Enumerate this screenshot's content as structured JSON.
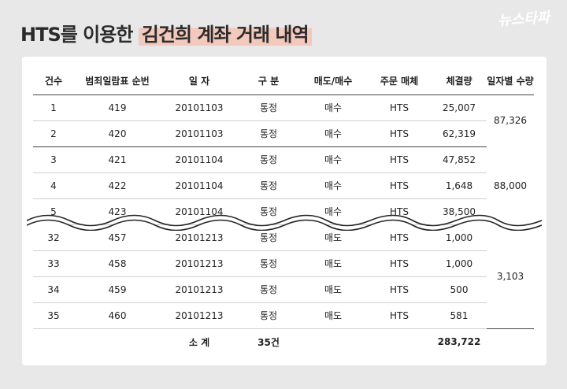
{
  "title": {
    "prefix": "HTS를 이용한 ",
    "highlight": "김건희 계좌 거래 내역"
  },
  "logo": {
    "text": "뉴스타파"
  },
  "table": {
    "headers": [
      "건수",
      "범죄일람표 순번",
      "일 자",
      "구 분",
      "매도/매수",
      "주문 매체",
      "체결량",
      "일자별 수량"
    ],
    "rows": [
      {
        "no": "1",
        "seq": "419",
        "date": "20101103",
        "type": "통정",
        "side": "매수",
        "media": "HTS",
        "qty": "25,007"
      },
      {
        "no": "2",
        "seq": "420",
        "date": "20101103",
        "type": "통정",
        "side": "매수",
        "media": "HTS",
        "qty": "62,319"
      },
      {
        "no": "3",
        "seq": "421",
        "date": "20101104",
        "type": "통정",
        "side": "매수",
        "media": "HTS",
        "qty": "47,852"
      },
      {
        "no": "4",
        "seq": "422",
        "date": "20101104",
        "type": "통정",
        "side": "매수",
        "media": "HTS",
        "qty": "1,648"
      },
      {
        "no": "5",
        "seq": "423",
        "date": "20101104",
        "type": "통정",
        "side": "매수",
        "media": "HTS",
        "qty": "38,500"
      },
      {
        "no": "32",
        "seq": "457",
        "date": "20101213",
        "type": "통정",
        "side": "매도",
        "media": "HTS",
        "qty": "1,000"
      },
      {
        "no": "33",
        "seq": "458",
        "date": "20101213",
        "type": "통정",
        "side": "매도",
        "media": "HTS",
        "qty": "1,000"
      },
      {
        "no": "34",
        "seq": "459",
        "date": "20101213",
        "type": "통정",
        "side": "매도",
        "media": "HTS",
        "qty": "500"
      },
      {
        "no": "35",
        "seq": "460",
        "date": "20101213",
        "type": "통정",
        "side": "매도",
        "media": "HTS",
        "qty": "581"
      }
    ],
    "daily_totals": [
      "87,326",
      "88,000",
      "3,103"
    ],
    "subtotal": {
      "label": "소 계",
      "count": "35건",
      "qty": "283,722"
    }
  }
}
